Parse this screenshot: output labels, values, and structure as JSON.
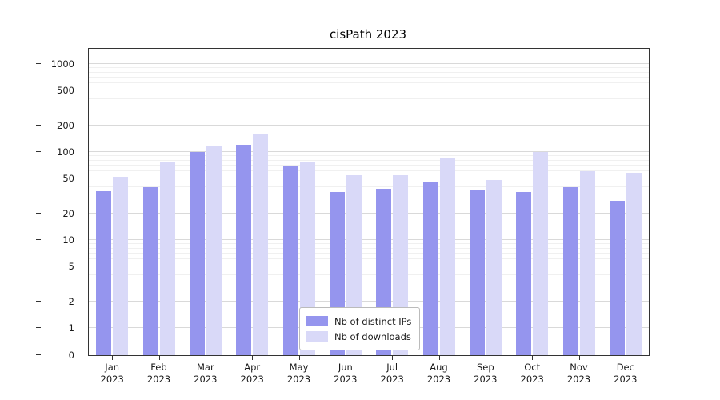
{
  "title": "cisPath 2023",
  "chart_data": {
    "type": "bar",
    "title": "cisPath 2023",
    "categories": [
      "Jan 2023",
      "Feb 2023",
      "Mar 2023",
      "Apr 2023",
      "May 2023",
      "Jun 2023",
      "Jul 2023",
      "Aug 2023",
      "Sep 2023",
      "Oct 2023",
      "Nov 2023",
      "Dec 2023"
    ],
    "series": [
      {
        "name": "Nb of distinct IPs",
        "color": "#9595ee",
        "values": [
          36,
          40,
          100,
          120,
          68,
          35,
          38,
          46,
          37,
          35,
          40,
          28
        ]
      },
      {
        "name": "Nb of downloads",
        "color": "#d9d9f8",
        "values": [
          52,
          76,
          115,
          160,
          78,
          55,
          55,
          85,
          48,
          100,
          60,
          58
        ]
      }
    ],
    "yscale": "symlog",
    "yticks": [
      0,
      1,
      2,
      5,
      10,
      20,
      50,
      100,
      200,
      500,
      1000
    ],
    "ylim": [
      0,
      1400
    ],
    "xlabel": "",
    "ylabel": "",
    "grid": true,
    "legend_position": "lower center"
  }
}
